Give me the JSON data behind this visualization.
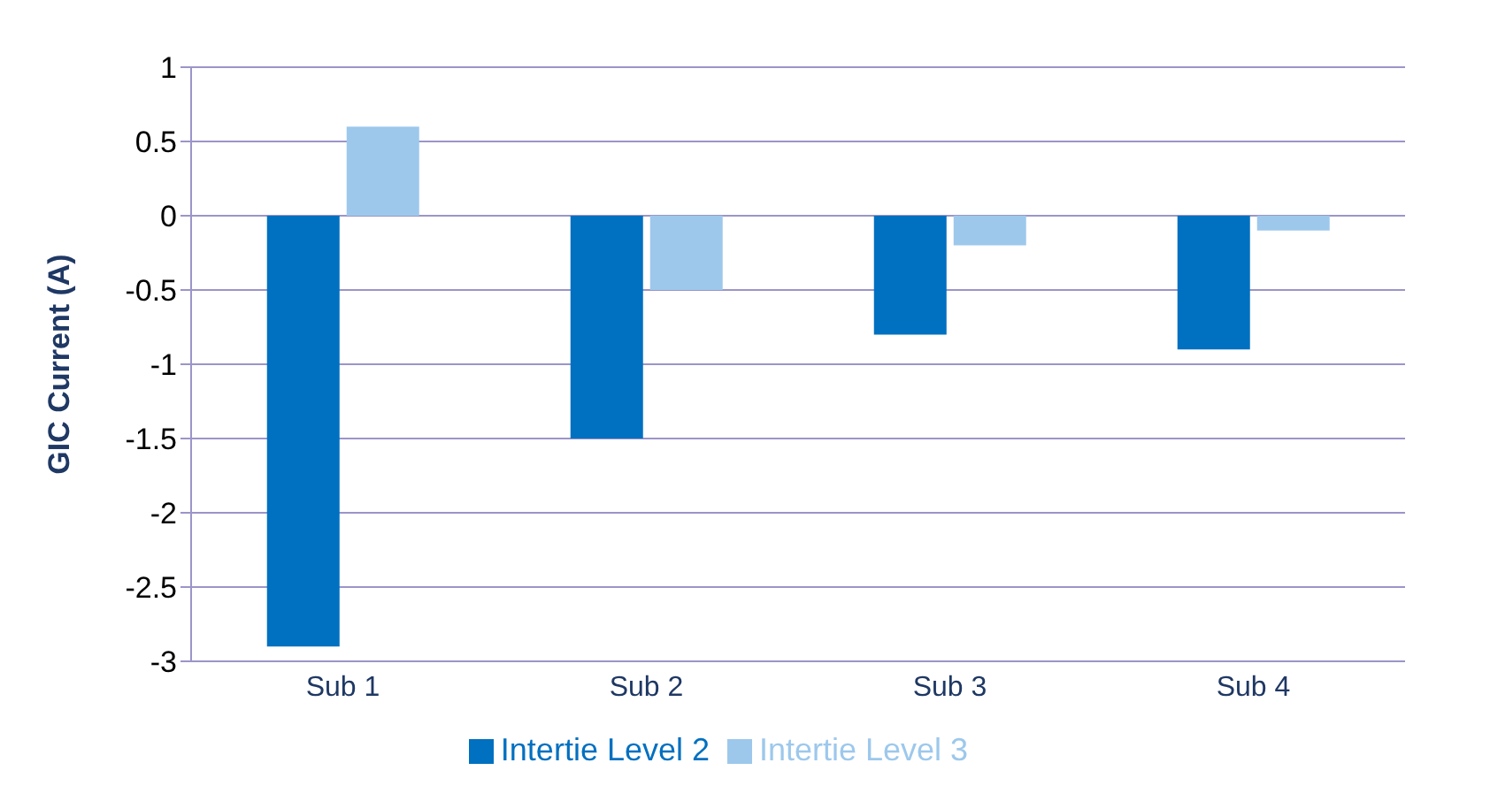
{
  "chart_data": {
    "type": "bar",
    "ylabel": "GIC Current (A)",
    "categories": [
      "Sub 1",
      "Sub 2",
      "Sub 3",
      "Sub 4"
    ],
    "series": [
      {
        "name": "Intertie Level 2",
        "color": "#0070c0",
        "values": [
          -2.9,
          -1.5,
          -0.8,
          -0.9
        ]
      },
      {
        "name": "Intertie Level 3",
        "color": "#9dc8ec",
        "values": [
          0.6,
          -0.5,
          -0.2,
          -0.1
        ]
      }
    ],
    "ylim": [
      -3,
      1
    ],
    "yticks": [
      -3,
      -2.5,
      -2,
      -1.5,
      -1,
      -0.5,
      0,
      0.5,
      1
    ],
    "grid": "y",
    "legend": "bottom"
  }
}
